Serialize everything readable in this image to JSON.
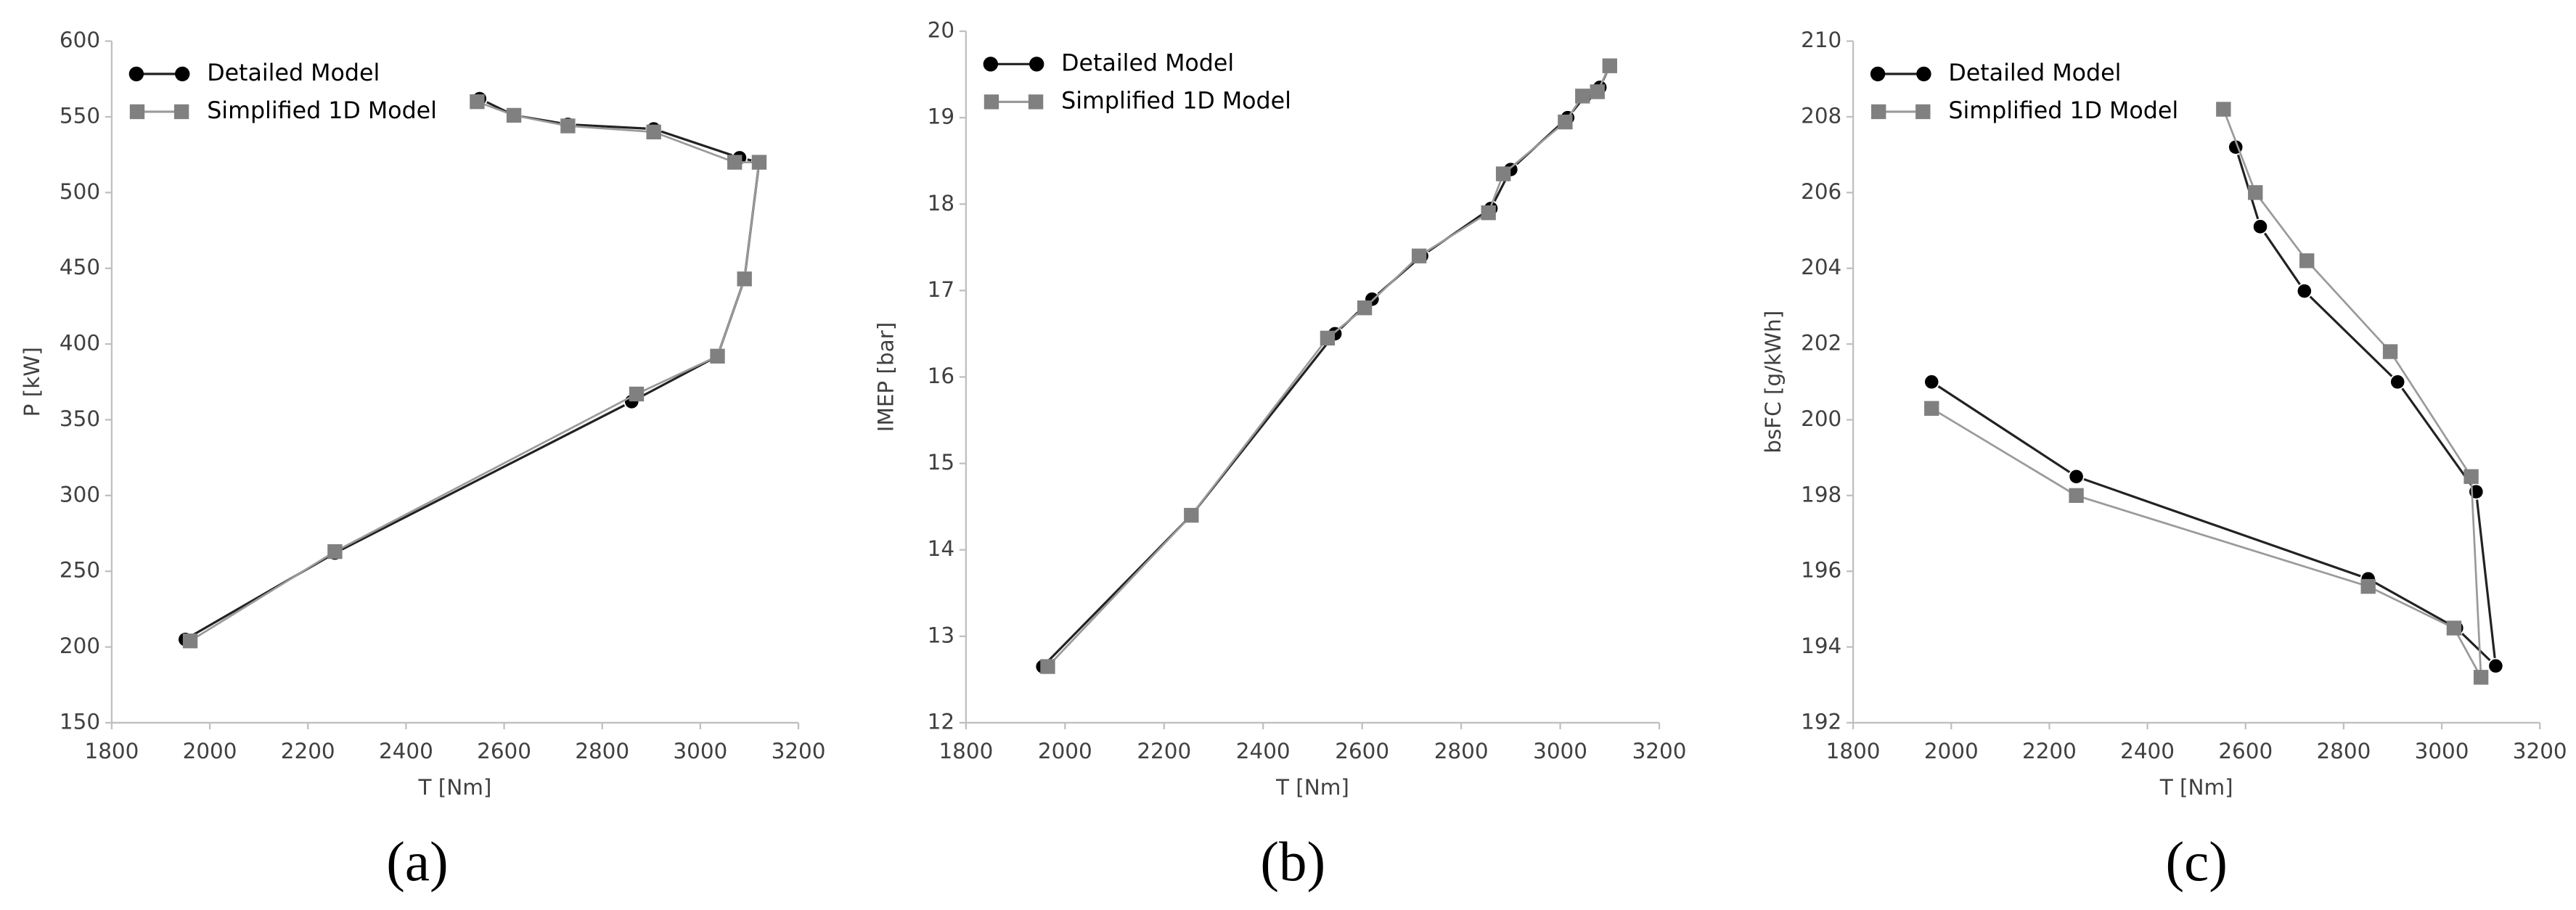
{
  "chart_data": [
    {
      "type": "line",
      "panel_label": "(a)",
      "xlabel": "T [Nm]",
      "ylabel": "P [kW]",
      "xlim": [
        1800,
        3200
      ],
      "xticks": [
        1800,
        2000,
        2200,
        2400,
        2600,
        2800,
        3000,
        3200
      ],
      "ylim": [
        150,
        600
      ],
      "yticks": [
        150,
        200,
        250,
        300,
        350,
        400,
        450,
        500,
        550,
        600
      ],
      "legend": "upper left",
      "series": [
        {
          "name": "Detailed Model",
          "color": "#000000",
          "marker": "circle",
          "x": [
            1950,
            2255,
            2860,
            3035,
            3090,
            3120,
            3080,
            2905,
            2730,
            2620,
            2550
          ],
          "values": [
            205,
            262,
            362,
            392,
            443,
            520,
            523,
            542,
            545,
            551,
            562
          ]
        },
        {
          "name": "Simplified 1D Model",
          "color": "#808080",
          "marker": "square",
          "x": [
            1960,
            2255,
            2870,
            3035,
            3090,
            3120,
            3070,
            2905,
            2730,
            2620,
            2545
          ],
          "values": [
            204,
            263,
            367,
            392,
            443,
            520,
            520,
            540,
            544,
            551,
            560
          ]
        }
      ]
    },
    {
      "type": "line",
      "panel_label": "(b)",
      "xlabel": "T [Nm]",
      "ylabel": "IMEP [bar]",
      "xlim": [
        1800,
        3200
      ],
      "xticks": [
        1800,
        2000,
        2200,
        2400,
        2600,
        2800,
        3000,
        3200
      ],
      "ylim": [
        12,
        20
      ],
      "yticks": [
        12,
        13,
        14,
        15,
        16,
        17,
        18,
        19,
        20
      ],
      "legend": "upper left",
      "series": [
        {
          "name": "Detailed Model",
          "color": "#000000",
          "marker": "circle",
          "x": [
            1955,
            2255,
            2545,
            2620,
            2720,
            2860,
            2900,
            3015,
            3050,
            3080,
            3100
          ],
          "values": [
            12.65,
            14.4,
            16.5,
            16.9,
            17.4,
            17.95,
            18.4,
            19.0,
            19.25,
            19.35,
            19.6
          ]
        },
        {
          "name": "Simplified 1D Model",
          "color": "#808080",
          "marker": "square",
          "x": [
            1965,
            2255,
            2530,
            2605,
            2715,
            2855,
            2885,
            3010,
            3045,
            3075,
            3100
          ],
          "values": [
            12.65,
            14.4,
            16.45,
            16.8,
            17.4,
            17.9,
            18.35,
            18.95,
            19.25,
            19.3,
            19.6
          ]
        }
      ]
    },
    {
      "type": "line",
      "panel_label": "(c)",
      "xlabel": "T [Nm]",
      "ylabel": "bsFC [g/kWh]",
      "xlim": [
        1800,
        3200
      ],
      "xticks": [
        1800,
        2000,
        2200,
        2400,
        2600,
        2800,
        3000,
        3200
      ],
      "ylim": [
        192,
        210
      ],
      "yticks": [
        192,
        194,
        196,
        198,
        200,
        202,
        204,
        206,
        208,
        210
      ],
      "legend": "upper left",
      "series": [
        {
          "name": "Detailed Model",
          "color": "#000000",
          "marker": "circle",
          "x": [
            1960,
            2255,
            2850,
            3030,
            3110,
            3070,
            2910,
            2720,
            2630,
            2580
          ],
          "values": [
            201,
            198.5,
            195.8,
            194.5,
            193.5,
            198.1,
            201,
            203.4,
            205.1,
            207.2
          ]
        },
        {
          "name": "Simplified 1D Model",
          "color": "#808080",
          "marker": "square",
          "x": [
            1960,
            2255,
            2850,
            3025,
            3080,
            3060,
            2895,
            2725,
            2620,
            2555
          ],
          "values": [
            200.3,
            198,
            195.6,
            194.5,
            193.2,
            198.5,
            201.8,
            204.2,
            206,
            208.2
          ]
        }
      ]
    }
  ]
}
